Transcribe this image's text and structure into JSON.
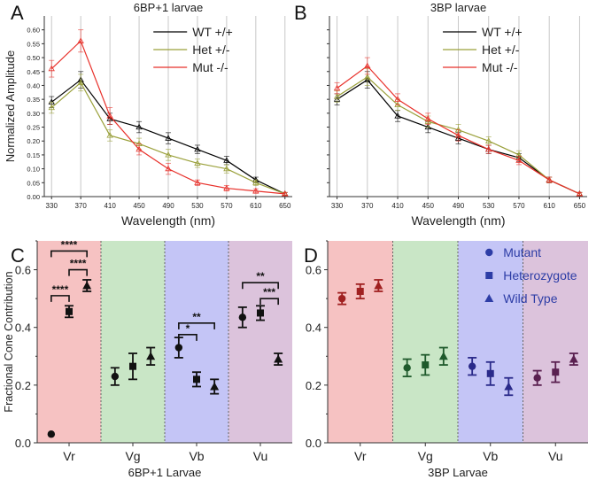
{
  "panel_letters": [
    "A",
    "B",
    "C",
    "D"
  ],
  "chart_data": [
    {
      "panel": "A",
      "type": "line",
      "title": "6BP+1 larvae",
      "xlabel": "Wavelength (nm)",
      "ylabel": "Normalized Amplitude",
      "xlim": [
        320,
        660
      ],
      "ylim": [
        0,
        0.65
      ],
      "x_ticks": [
        "330",
        "370",
        "410",
        "450",
        "490",
        "530",
        "570",
        "610",
        "650"
      ],
      "y_ticks": [
        "0.00",
        "0.05",
        "0.10",
        "0.15",
        "0.20",
        "0.25",
        "0.30",
        "0.35",
        "0.40",
        "0.45",
        "0.50",
        "0.55",
        "0.60"
      ],
      "grid": "vertical",
      "legend": "top-right",
      "x": [
        330,
        370,
        410,
        450,
        490,
        530,
        570,
        610,
        650
      ],
      "series": [
        {
          "name": "WT +/+",
          "color": "#000000",
          "values": [
            0.34,
            0.42,
            0.28,
            0.25,
            0.21,
            0.17,
            0.13,
            0.06,
            0.01
          ],
          "err": [
            0.02,
            0.03,
            0.02,
            0.02,
            0.02,
            0.015,
            0.015,
            0.01,
            0.005
          ]
        },
        {
          "name": "Het +/-",
          "color": "#9aa03a",
          "values": [
            0.32,
            0.41,
            0.22,
            0.19,
            0.15,
            0.12,
            0.1,
            0.05,
            0.01
          ],
          "err": [
            0.02,
            0.03,
            0.02,
            0.02,
            0.02,
            0.015,
            0.015,
            0.01,
            0.005
          ]
        },
        {
          "name": "Mut -/-",
          "color": "#e8302a",
          "values": [
            0.46,
            0.56,
            0.29,
            0.17,
            0.1,
            0.05,
            0.03,
            0.02,
            0.01
          ],
          "err": [
            0.03,
            0.04,
            0.03,
            0.02,
            0.02,
            0.01,
            0.01,
            0.008,
            0.005
          ]
        }
      ]
    },
    {
      "panel": "B",
      "type": "line",
      "title": "3BP larvae",
      "xlabel": "Wavelength (nm)",
      "ylabel": "",
      "xlim": [
        320,
        660
      ],
      "ylim": [
        0,
        0.65
      ],
      "x_ticks": [
        "330",
        "370",
        "410",
        "450",
        "490",
        "530",
        "570",
        "610",
        "650"
      ],
      "grid": "vertical",
      "legend": "top-right",
      "x": [
        330,
        370,
        410,
        450,
        490,
        530,
        570,
        610,
        650
      ],
      "series": [
        {
          "name": "WT +/+",
          "color": "#000000",
          "values": [
            0.35,
            0.42,
            0.29,
            0.25,
            0.21,
            0.17,
            0.14,
            0.06,
            0.01
          ],
          "err": [
            0.02,
            0.03,
            0.02,
            0.02,
            0.02,
            0.015,
            0.015,
            0.01,
            0.005
          ]
        },
        {
          "name": "Het +/-",
          "color": "#9aa03a",
          "values": [
            0.36,
            0.43,
            0.33,
            0.27,
            0.24,
            0.2,
            0.15,
            0.06,
            0.01
          ],
          "err": [
            0.02,
            0.03,
            0.02,
            0.02,
            0.02,
            0.015,
            0.015,
            0.01,
            0.005
          ]
        },
        {
          "name": "Mut -/-",
          "color": "#e8302a",
          "values": [
            0.39,
            0.47,
            0.35,
            0.28,
            0.22,
            0.17,
            0.13,
            0.06,
            0.01
          ],
          "err": [
            0.02,
            0.03,
            0.02,
            0.02,
            0.02,
            0.015,
            0.015,
            0.01,
            0.005
          ]
        }
      ]
    },
    {
      "panel": "C",
      "type": "scatter",
      "title": "",
      "xlabel": "6BP+1 Larvae",
      "ylabel": "Fractional Cone Contribution",
      "ylim": [
        0,
        0.7
      ],
      "y_ticks": [
        "0.0",
        "0.2",
        "0.4",
        "0.6"
      ],
      "categories": [
        "Vr",
        "Vg",
        "Vb",
        "Vu"
      ],
      "band_colors": [
        "#f6c2c2",
        "#c9e6c6",
        "#c4c5f6",
        "#dcc3dc"
      ],
      "series": [
        {
          "name": "Mutant",
          "marker": "circle",
          "values": [
            0.03,
            0.23,
            0.33,
            0.435
          ],
          "err": [
            0.0,
            0.03,
            0.035,
            0.035
          ]
        },
        {
          "name": "Heterozygote",
          "marker": "square",
          "values": [
            0.455,
            0.265,
            0.22,
            0.45
          ],
          "err": [
            0.02,
            0.045,
            0.025,
            0.025
          ]
        },
        {
          "name": "Wild Type",
          "marker": "triangle",
          "values": [
            0.545,
            0.3,
            0.195,
            0.29
          ],
          "err": [
            0.02,
            0.03,
            0.025,
            0.02
          ]
        }
      ],
      "significance": [
        {
          "category": 0,
          "from": 0,
          "to": 2,
          "label": "****",
          "y": 0.665
        },
        {
          "category": 0,
          "from": 1,
          "to": 2,
          "label": "****",
          "y": 0.6
        },
        {
          "category": 0,
          "from": 0,
          "to": 1,
          "label": "****",
          "y": 0.51
        },
        {
          "category": 2,
          "from": 0,
          "to": 2,
          "label": "**",
          "y": 0.415
        },
        {
          "category": 2,
          "from": 0,
          "to": 1,
          "label": "*",
          "y": 0.375
        },
        {
          "category": 3,
          "from": 0,
          "to": 2,
          "label": "**",
          "y": 0.555
        },
        {
          "category": 3,
          "from": 1,
          "to": 2,
          "label": "***",
          "y": 0.5
        }
      ]
    },
    {
      "panel": "D",
      "type": "scatter",
      "title": "",
      "xlabel": "3BP Larvae",
      "ylabel": "",
      "ylim": [
        0,
        0.7
      ],
      "y_ticks": [
        "0.0",
        "0.2",
        "0.4",
        "0.6"
      ],
      "categories": [
        "Vr",
        "Vg",
        "Vb",
        "Vu"
      ],
      "band_colors": [
        "#f6c2c2",
        "#c9e6c6",
        "#c4c5f6",
        "#dcc3dc"
      ],
      "legend": "top-right",
      "series": [
        {
          "name": "Mutant",
          "marker": "circle",
          "color": "#a02020",
          "values": [
            0.5,
            0.26,
            0.265,
            0.225
          ],
          "err": [
            0.02,
            0.03,
            0.03,
            0.025
          ]
        },
        {
          "name": "Heterozygote",
          "marker": "square",
          "color": "#a02020",
          "values": [
            0.525,
            0.27,
            0.24,
            0.245
          ],
          "err": [
            0.025,
            0.035,
            0.04,
            0.035
          ]
        },
        {
          "name": "Wild Type",
          "marker": "triangle",
          "color": "#a02020",
          "values": [
            0.545,
            0.3,
            0.195,
            0.29
          ],
          "err": [
            0.02,
            0.03,
            0.03,
            0.02
          ]
        }
      ],
      "marker_color_by_category": [
        "#a02020",
        "#1f5a2c",
        "#2a2a8a",
        "#5a2050"
      ],
      "legend_color": "#2d3da6"
    }
  ]
}
